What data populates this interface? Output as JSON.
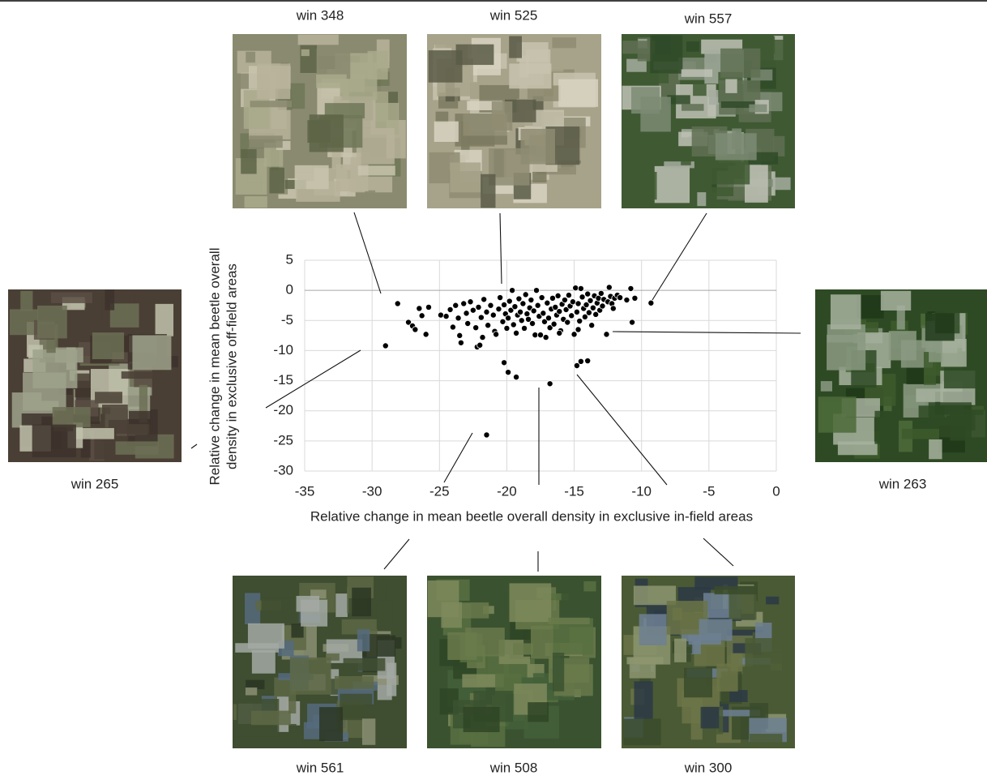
{
  "chart_data": {
    "type": "scatter",
    "x_label": "Relative change in mean beetle overall density in exclusive in-field areas",
    "y_label": [
      "Relative change in mean beetle overall",
      "density in exclusive off-field areas"
    ],
    "color": "#000000",
    "grid": true,
    "xlim": [
      -35,
      0
    ],
    "xticks": [
      -35,
      -30,
      -25,
      -20,
      -15,
      -10,
      -5,
      0
    ],
    "ylim": [
      -30,
      5
    ],
    "yticks": [
      5,
      0,
      -5,
      -10,
      -15,
      -20,
      -25,
      -30
    ],
    "x": [
      -28.1,
      -27.3,
      -27,
      -26.8,
      -29,
      -26.5,
      -26.3,
      -26,
      -25.8,
      -24.9,
      -24.5,
      -24.2,
      -24,
      -23.8,
      -23.6,
      -23.5,
      -23.4,
      -23.2,
      -23,
      -22.9,
      -22.7,
      -22.5,
      -22.3,
      -22.2,
      -22,
      -22.1,
      -21.9,
      -21.8,
      -21.7,
      -21.5,
      -21.4,
      -21.2,
      -21,
      -20.9,
      -20.8,
      -20.6,
      -20.5,
      -20.3,
      -20.2,
      -20.1,
      -20,
      -19.9,
      -19.8,
      -19.7,
      -19.6,
      -19.5,
      -19.4,
      -19.3,
      -19.2,
      -19.1,
      -19,
      -18.9,
      -18.8,
      -18.7,
      -18.6,
      -18.5,
      -18.4,
      -18.3,
      -18.2,
      -18.1,
      -18,
      -17.9,
      -17.8,
      -17.7,
      -17.6,
      -17.5,
      -17.4,
      -17.3,
      -17.2,
      -17.1,
      -17,
      -16.9,
      -16.8,
      -16.7,
      -16.6,
      -16.5,
      -16.4,
      -16.3,
      -16.2,
      -16.1,
      -16,
      -15.9,
      -15.8,
      -15.7,
      -15.6,
      -15.5,
      -15.4,
      -15.3,
      -15.2,
      -15.1,
      -15,
      -14.9,
      -14.8,
      -14.7,
      -14.6,
      -14.5,
      -14.4,
      -14.3,
      -14.2,
      -14.1,
      -14,
      -13.9,
      -13.8,
      -13.7,
      -13.6,
      -13.5,
      -13.4,
      -13.3,
      -13.2,
      -13.1,
      -13,
      -12.9,
      -12.8,
      -12.6,
      -12.5,
      -12.4,
      -12.3,
      -12.2,
      -12.1,
      -12,
      -11.8,
      -11.6,
      -11.1,
      -10.8,
      -10.7,
      -10.5,
      -9.3,
      -20.2,
      -19.9,
      -19.3,
      -16.8,
      -14.8,
      -14.5,
      -14,
      -21.5,
      -14.7,
      -16.1
    ],
    "values": [
      -2.2,
      -5.3,
      -5.9,
      -6.5,
      -9.2,
      -3,
      -4.2,
      -7.3,
      -2.8,
      -4.1,
      -4.3,
      -3.2,
      -6.1,
      -2.5,
      -4.6,
      -7.5,
      -8.7,
      -2.2,
      -3.8,
      -5.5,
      -1.9,
      -3.3,
      -6.2,
      -9.4,
      -9.1,
      -2.8,
      -4.5,
      -7.8,
      -1.5,
      -3.6,
      -5.8,
      -2.5,
      -4.1,
      -6.8,
      -7.3,
      -3.1,
      -1.2,
      -5.2,
      -2.4,
      -3.9,
      -6.3,
      -4.6,
      -1.8,
      -3.3,
      0,
      -5.7,
      -2.7,
      -7.1,
      -4.1,
      -1.4,
      -3.6,
      -5,
      -2.2,
      -6.3,
      -0.7,
      -3.9,
      -4.8,
      -2.9,
      -1.6,
      -5.5,
      -3.4,
      -7.4,
      0,
      -2.5,
      -4.3,
      -7.4,
      -1.2,
      -3.8,
      -5.2,
      -7.8,
      -2.1,
      -4.6,
      -6.2,
      -3.1,
      -1.3,
      -5.6,
      -2.8,
      -4.1,
      -0.9,
      -3.5,
      -6.7,
      -2.3,
      -4.8,
      -1.6,
      -3.2,
      -5.3,
      -0.8,
      -2.6,
      -4.2,
      -1.9,
      -7.3,
      0.4,
      -3.6,
      -2.2,
      -5.1,
      0.3,
      -1.1,
      -3,
      -4.4,
      -2.4,
      -0.6,
      -3.7,
      -1.7,
      -5.8,
      -2.9,
      -0.9,
      -4,
      -2.1,
      -1.3,
      -3.3,
      -0.5,
      -2.6,
      -1.5,
      -7.3,
      -1.9,
      0.5,
      -1,
      -2.2,
      -3,
      -1.3,
      -0.8,
      -1.2,
      -1.6,
      0.3,
      -5.3,
      -1.3,
      -2.1,
      -12,
      -13.6,
      -14.4,
      -15.5,
      -12.5,
      -11.8,
      -11.7,
      -24,
      -6.5,
      -7.1
    ]
  },
  "panels": [
    {
      "label": "win 348"
    },
    {
      "label": "win 525"
    },
    {
      "label": "win 557"
    },
    {
      "label": "win 265"
    },
    {
      "label": "win 263"
    },
    {
      "label": "win 561"
    },
    {
      "label": "win 508"
    },
    {
      "label": "win 300"
    }
  ]
}
